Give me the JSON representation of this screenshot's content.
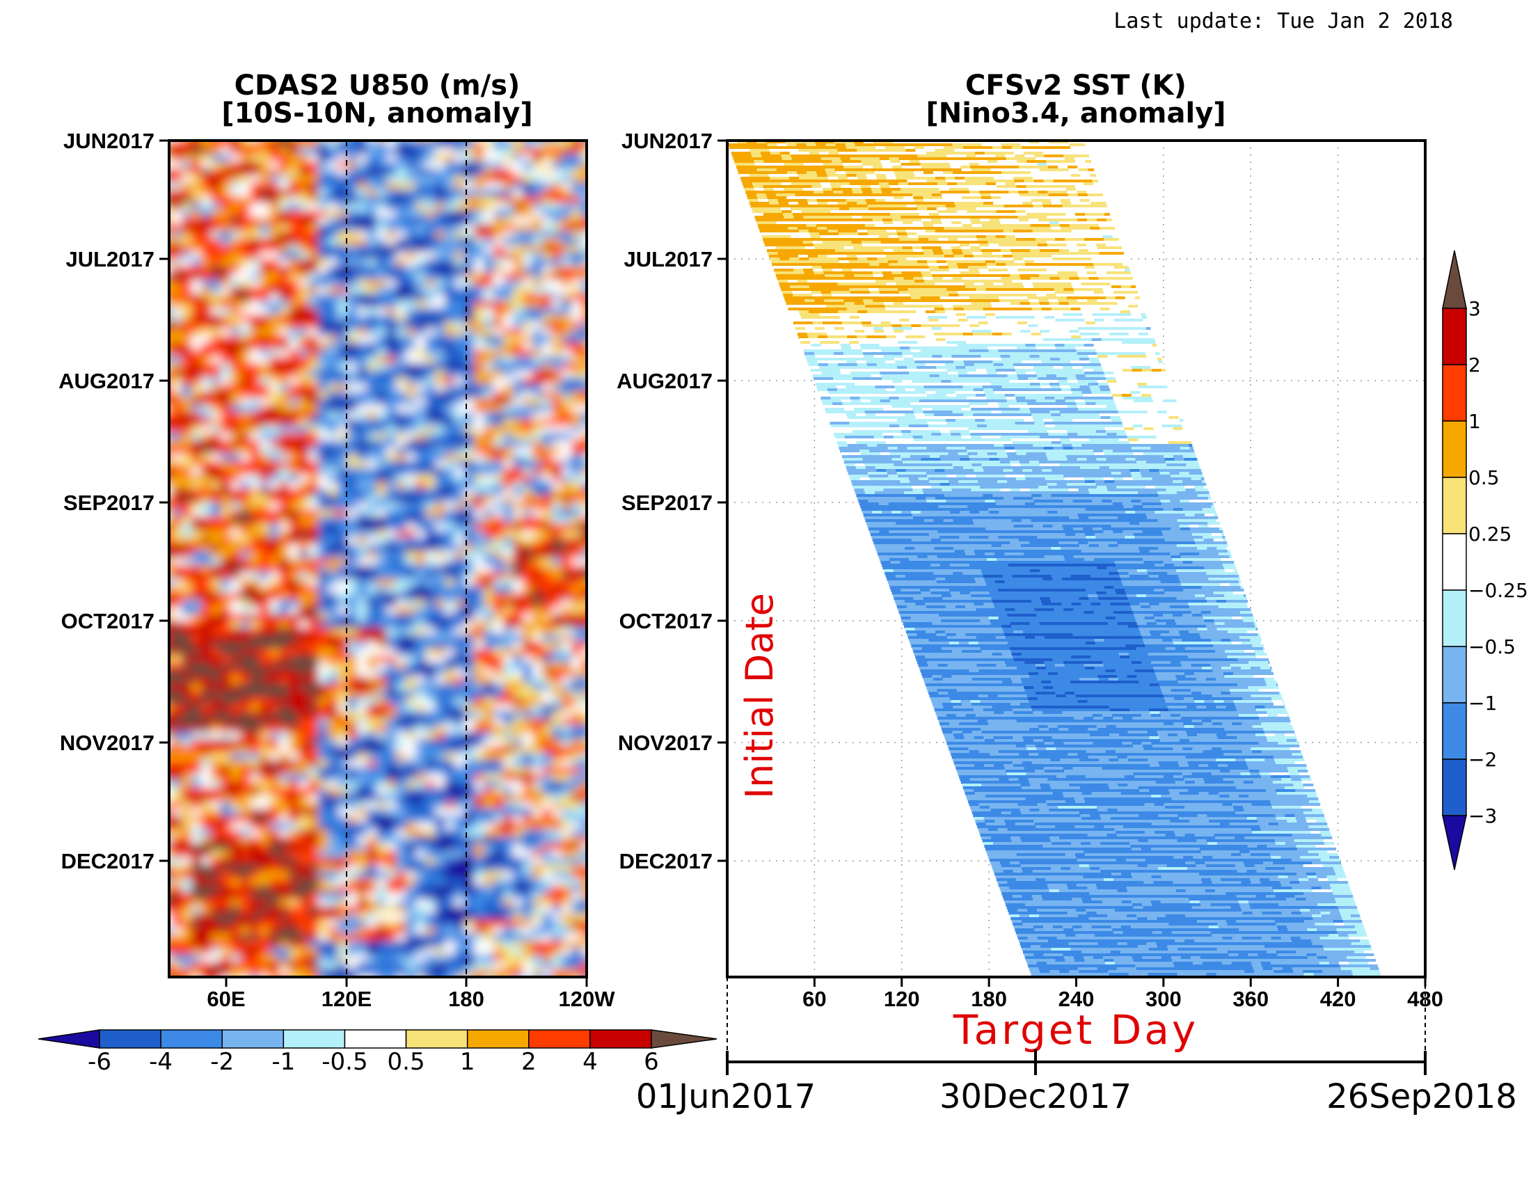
{
  "last_update": "Last update: Tue Jan 2 2018",
  "palette": {
    "blue_dark": "#1a0aa0",
    "blue_3": "#1e5fcc",
    "blue_2": "#3c8ae6",
    "blue_1": "#78b4f0",
    "cyan": "#b4f0fa",
    "white": "#ffffff",
    "yellow": "#f8e27a",
    "orange": "#f6a800",
    "red_orange": "#ff3c00",
    "red": "#c80000",
    "brown": "#6b4a3e",
    "target_red": "#e00000"
  },
  "chart_data": [
    {
      "type": "heatmap",
      "title": "CDAS2 U850 (m/s)",
      "subtitle": "[10S-10N, anomaly]",
      "y_ticks": [
        "JUN2017",
        "JUL2017",
        "AUG2017",
        "SEP2017",
        "OCT2017",
        "NOV2017",
        "DEC2017"
      ],
      "x_ticks": [
        "60E",
        "120E",
        "180",
        "120W"
      ],
      "xlim": [
        "30E",
        "120W"
      ],
      "reference_lines": [
        "120E",
        "180"
      ],
      "colorbar": {
        "levels": [
          "-6",
          "-4",
          "-2",
          "-1",
          "-0.5",
          "0.5",
          "1",
          "2",
          "4",
          "6"
        ],
        "orientation": "horizontal"
      },
      "description_regions": [
        {
          "region": "west (40E-100E)",
          "sign": "positive",
          "peak": 6
        },
        {
          "region": "central (110E-180)",
          "sign": "negative",
          "peak": -6
        },
        {
          "region": "Oct-Nov 60E-130E",
          "sign": "positive",
          "peak": 6
        }
      ]
    },
    {
      "type": "heatmap",
      "title": "CFSv2 SST (K)",
      "subtitle": "[Nino3.4, anomaly]",
      "y_label": "Initial Date",
      "x_label": "Target Day",
      "y_ticks": [
        "JUN2017",
        "JUL2017",
        "AUG2017",
        "SEP2017",
        "OCT2017",
        "NOV2017",
        "DEC2017"
      ],
      "x_ticks": [
        "60",
        "120",
        "180",
        "240",
        "300",
        "360",
        "420",
        "480"
      ],
      "xlim": [
        0,
        480
      ],
      "date_axis": [
        "01Jun2017",
        "30Dec2017",
        "26Sep2018"
      ],
      "colorbar": {
        "levels": [
          "3",
          "2",
          "1",
          "0.5",
          "0.25",
          "−0.25",
          "−0.5",
          "−1",
          "−2",
          "−3"
        ],
        "orientation": "vertical"
      },
      "forecast_band_target_days": {
        "initial_jun_start": 0,
        "initial_jun_end": 245,
        "initial_dec_start": 210,
        "initial_dec_end": 450
      },
      "description_regions": [
        {
          "initial": "Jun-Jul 2017",
          "anomaly_K": 0.5
        },
        {
          "initial": "Aug 2017",
          "anomaly_K": -0.5
        },
        {
          "initial": "Sep-Dec 2017",
          "anomaly_K": -1.5
        }
      ]
    }
  ]
}
